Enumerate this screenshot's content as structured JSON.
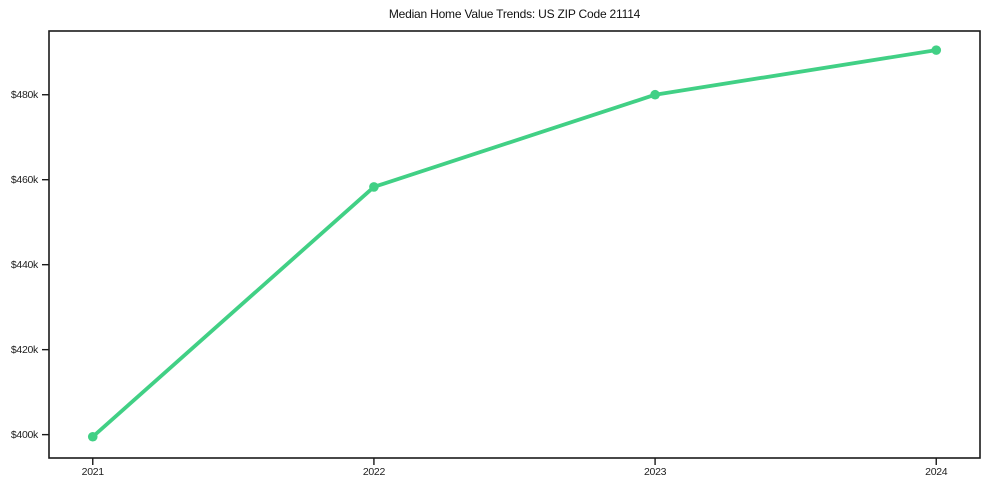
{
  "chart_data": {
    "type": "line",
    "title": "Median Home Value Trends: US ZIP Code 21114",
    "categories": [
      "2021",
      "2022",
      "2023",
      "2024"
    ],
    "series": [
      {
        "name": "Median Home Value",
        "values": [
          399500,
          458300,
          480000,
          490500
        ]
      }
    ],
    "y_ticks": [
      {
        "value": 400000,
        "label": "$400k"
      },
      {
        "value": 420000,
        "label": "$420k"
      },
      {
        "value": 440000,
        "label": "$440k"
      },
      {
        "value": 460000,
        "label": "$460k"
      },
      {
        "value": 480000,
        "label": "$480k"
      }
    ],
    "ylim": [
      394500,
      495000
    ],
    "xlabel": "",
    "ylabel": "",
    "grid": false,
    "legend": "none",
    "line_color": "#41d085",
    "marker_color": "#41d085",
    "axis_color": "#1a1a1a",
    "background_color": "#ffffff"
  }
}
